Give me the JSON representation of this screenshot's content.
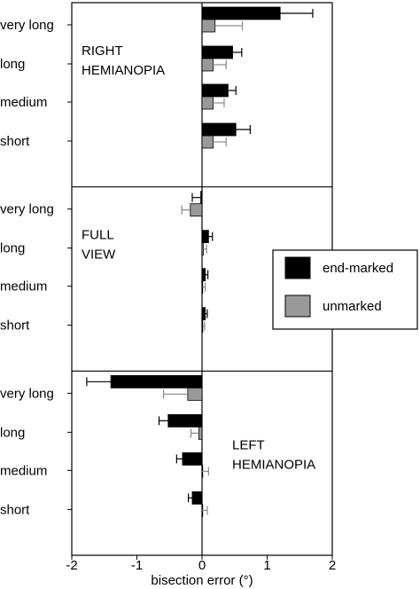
{
  "chart_data": {
    "type": "bar",
    "orientation": "horizontal",
    "xlabel": "bisection error (°)",
    "xlim": [
      -2,
      2
    ],
    "xticks": [
      "-2",
      "-1",
      "0",
      "1",
      "2"
    ],
    "categories": [
      "very long",
      "long",
      "medium",
      "short"
    ],
    "legend": {
      "placement": "right",
      "items": [
        {
          "label": "end-marked",
          "color": "#000000"
        },
        {
          "label": "unmarked",
          "color": "#999999"
        }
      ]
    },
    "panels": [
      {
        "label_lines": [
          "RIGHT",
          "HEMIANOPIA"
        ],
        "series": [
          {
            "name": "end-marked",
            "values": [
              1.2,
              0.47,
              0.4,
              0.52
            ],
            "errors": [
              0.5,
              0.14,
              0.12,
              0.22
            ]
          },
          {
            "name": "unmarked",
            "values": [
              0.2,
              0.17,
              0.17,
              0.17
            ],
            "errors": [
              0.42,
              0.2,
              0.17,
              0.2
            ]
          }
        ]
      },
      {
        "label_lines": [
          "FULL",
          "VIEW"
        ],
        "series": [
          {
            "name": "end-marked",
            "values": [
              -0.02,
              0.1,
              0.05,
              0.05
            ],
            "errors": [
              0.13,
              0.06,
              0.04,
              0.03
            ]
          },
          {
            "name": "unmarked",
            "values": [
              -0.18,
              0.02,
              0.01,
              0.01
            ],
            "errors": [
              0.13,
              0.05,
              0.04,
              0.03
            ]
          }
        ]
      },
      {
        "label_lines": [
          "LEFT",
          "HEMIANOPIA"
        ],
        "series": [
          {
            "name": "end-marked",
            "values": [
              -1.4,
              -0.52,
              -0.3,
              -0.15
            ],
            "errors": [
              0.37,
              0.14,
              0.09,
              0.06
            ]
          },
          {
            "name": "unmarked",
            "values": [
              -0.22,
              -0.05,
              0.0,
              0.0
            ],
            "errors": [
              0.37,
              0.12,
              0.1,
              0.08
            ]
          }
        ]
      }
    ]
  }
}
